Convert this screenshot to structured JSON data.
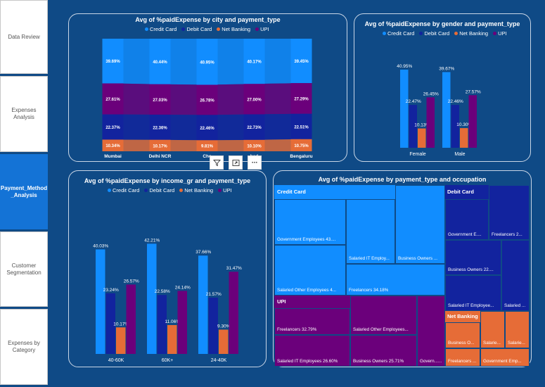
{
  "nav": [
    {
      "label": "Data Review",
      "active": false
    },
    {
      "label": "Expenses Analysis",
      "active": false
    },
    {
      "label": "Payment_Method _Analysis",
      "active": true
    },
    {
      "label": "Customer Segmentation",
      "active": false
    },
    {
      "label": "Expenses by Category",
      "active": false
    }
  ],
  "colors": {
    "credit": "#118dff",
    "debit": "#12239e",
    "net": "#e66c37",
    "upi": "#6b007b"
  },
  "legend": [
    "Credit Card",
    "Debit Card",
    "Net Banking",
    "UPI"
  ],
  "toolbar": {
    "filter": "filter-icon",
    "focus": "focus-mode-icon",
    "more": "more-options-icon",
    "more_label": "···"
  },
  "chart_data": [
    {
      "type": "bar",
      "stacked": "100%",
      "title": "Avg of %paidExpense by city and payment_type",
      "categories": [
        "Mumbai",
        "Delhi NCR",
        "Chennai",
        "Hyderabad",
        "Bengaluru"
      ],
      "category_labels": [
        "Mumbai",
        "Delhi NCR",
        "Che",
        "bad",
        "Bengaluru"
      ],
      "series": [
        {
          "name": "Credit Card",
          "values": [
            39.69,
            40.44,
            40.95,
            40.17,
            39.45
          ],
          "labels": [
            "39.69%",
            "40.44%",
            "40.95%",
            "40.17%",
            "39.45%"
          ]
        },
        {
          "name": "Debit Card",
          "values": [
            22.37,
            22.36,
            22.46,
            22.73,
            22.51
          ],
          "labels": [
            "22.37%",
            "22.36%",
            "22.46%",
            "22.73%",
            "22.51%"
          ]
        },
        {
          "name": "Net Banking",
          "values": [
            10.34,
            10.17,
            9.81,
            10.1,
            10.75
          ],
          "labels": [
            "10.34%",
            "10.17%",
            "9.81%",
            "10.10%",
            "10.75%"
          ]
        },
        {
          "name": "UPI",
          "values": [
            27.61,
            27.03,
            26.78,
            27.0,
            27.29
          ],
          "labels": [
            "27.61%",
            "27.03%",
            "26.78%",
            "27.00%",
            "27.29%"
          ]
        }
      ],
      "legend_position": "top"
    },
    {
      "type": "bar",
      "title": "Avg of %paidExpense by gender and payment_type",
      "categories": [
        "Female",
        "Male"
      ],
      "series": [
        {
          "name": "Credit Card",
          "values": [
            40.95,
            39.67
          ],
          "labels": [
            "40.95%",
            "39.67%"
          ]
        },
        {
          "name": "Debit Card",
          "values": [
            22.47,
            22.46
          ],
          "labels": [
            "22.47%",
            "22.46%"
          ]
        },
        {
          "name": "Net Banking",
          "values": [
            10.13,
            10.3
          ],
          "labels": [
            "10.13%",
            "10.30%"
          ]
        },
        {
          "name": "UPI",
          "values": [
            26.45,
            27.57
          ],
          "labels": [
            "26.45%",
            "27.57%"
          ]
        }
      ],
      "ylim": [
        0,
        45
      ],
      "legend_position": "top"
    },
    {
      "type": "bar",
      "title": "Avg of %paidExpense by income_gr and payment_type",
      "categories": [
        "40-60K",
        "60K+",
        "24-40K"
      ],
      "series": [
        {
          "name": "Credit Card",
          "values": [
            40.03,
            42.21,
            37.66
          ],
          "labels": [
            "40.03%",
            "42.21%",
            "37.66%"
          ]
        },
        {
          "name": "Debit Card",
          "values": [
            23.24,
            22.58,
            21.57
          ],
          "labels": [
            "23.24%",
            "22.58%",
            "21.57%"
          ]
        },
        {
          "name": "Net Banking",
          "values": [
            10.17,
            11.06,
            9.3
          ],
          "labels": [
            "10.17%",
            "11.06%",
            "9.30%"
          ]
        },
        {
          "name": "UPI",
          "values": [
            26.57,
            24.14,
            31.47
          ],
          "labels": [
            "26.57%",
            "24.14%",
            "31.47%"
          ]
        }
      ],
      "ylim": [
        0,
        45
      ],
      "legend_position": "top"
    },
    {
      "type": "treemap",
      "title": "Avg of %paidExpense by payment_type and occupation",
      "groups": [
        {
          "name": "Credit Card",
          "tiles": [
            {
              "label": "Government Employees 43...."
            },
            {
              "label": "Salaried IT Employ..."
            },
            {
              "label": "Business Owners ..."
            },
            {
              "label": "Salaried Other Employees 4..."
            },
            {
              "label": "Freelancers 34.18%"
            }
          ]
        },
        {
          "name": "Debit Card",
          "tiles": [
            {
              "label": "Government E...."
            },
            {
              "label": "Freelancers 2..."
            },
            {
              "label": "Business Owners 22...."
            },
            {
              "label": "Salaried IT Employee..."
            },
            {
              "label": "Salaried ..."
            }
          ]
        },
        {
          "name": "UPI",
          "tiles": [
            {
              "label": "Freelancers 32.79%"
            },
            {
              "label": "Salaried Other Employees..."
            },
            {
              "label": "Salaried IT Employees 26.60%"
            },
            {
              "label": "Business Owners 25.71%"
            },
            {
              "label": "Govern......"
            }
          ]
        },
        {
          "name": "Net Banking",
          "tiles": [
            {
              "label": "Business O..."
            },
            {
              "label": "Salarie..."
            },
            {
              "label": "Salarie..."
            },
            {
              "label": "Freelancers ..."
            },
            {
              "label": "Government Emp..."
            }
          ]
        }
      ]
    }
  ]
}
